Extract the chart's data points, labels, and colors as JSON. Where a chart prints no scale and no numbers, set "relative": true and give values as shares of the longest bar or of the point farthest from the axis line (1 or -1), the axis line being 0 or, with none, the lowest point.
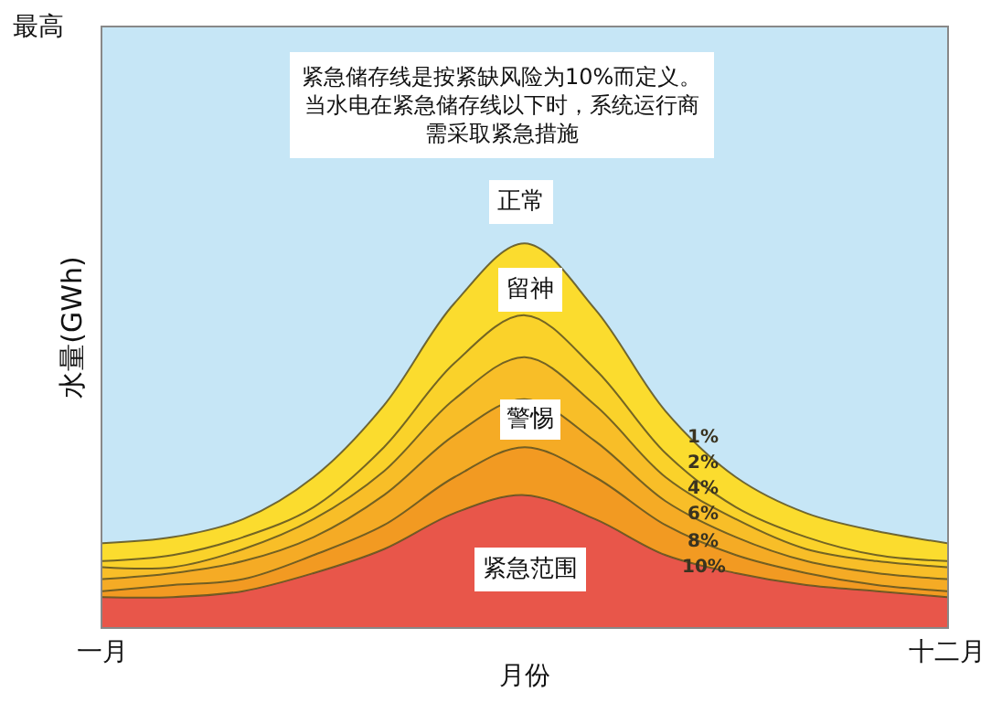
{
  "chart_data": {
    "type": "area",
    "relative": true,
    "xlabel": "月份",
    "ylabel": "水量(GWh)",
    "categories": [
      "一月",
      null,
      null,
      null,
      null,
      null,
      null,
      null,
      null,
      null,
      null,
      null,
      "十二月"
    ],
    "series": [
      {
        "name": "10%",
        "color": "#e8564a",
        "values": [
          0.05,
          0.05,
          0.06,
          0.09,
          0.13,
          0.19,
          0.22,
          0.18,
          0.12,
          0.09,
          0.07,
          0.06,
          0.05
        ]
      },
      {
        "name": "8%",
        "color": "#f29a22",
        "values": [
          0.06,
          0.07,
          0.08,
          0.12,
          0.17,
          0.25,
          0.3,
          0.25,
          0.17,
          0.12,
          0.09,
          0.07,
          0.06
        ]
      },
      {
        "name": "6%",
        "color": "#f5ab25",
        "values": [
          0.08,
          0.09,
          0.11,
          0.15,
          0.22,
          0.32,
          0.38,
          0.31,
          0.21,
          0.15,
          0.11,
          0.09,
          0.08
        ]
      },
      {
        "name": "4%",
        "color": "#f8be28",
        "values": [
          0.1,
          0.1,
          0.13,
          0.18,
          0.26,
          0.38,
          0.45,
          0.37,
          0.25,
          0.18,
          0.13,
          0.11,
          0.1
        ]
      },
      {
        "name": "2%",
        "color": "#fad22a",
        "values": [
          0.11,
          0.12,
          0.15,
          0.2,
          0.3,
          0.44,
          0.52,
          0.43,
          0.29,
          0.2,
          0.15,
          0.12,
          0.11
        ]
      },
      {
        "name": "1%",
        "color": "#fbdc2e",
        "values": [
          0.14,
          0.15,
          0.18,
          0.25,
          0.37,
          0.54,
          0.64,
          0.53,
          0.36,
          0.25,
          0.19,
          0.16,
          0.14
        ]
      },
      {
        "color": "#c6e6f6",
        "values": [
          1,
          1,
          1,
          1,
          1,
          1,
          1,
          1,
          1,
          1,
          1,
          1,
          1
        ]
      }
    ],
    "annotations": [
      "紧急储存线是按紧缺风险为10%而定义。当水电在紧急储存线以下时，系统运行商需采取紧急措施",
      "最高",
      "正常",
      "留神",
      "警惕",
      "紧急范围"
    ]
  }
}
